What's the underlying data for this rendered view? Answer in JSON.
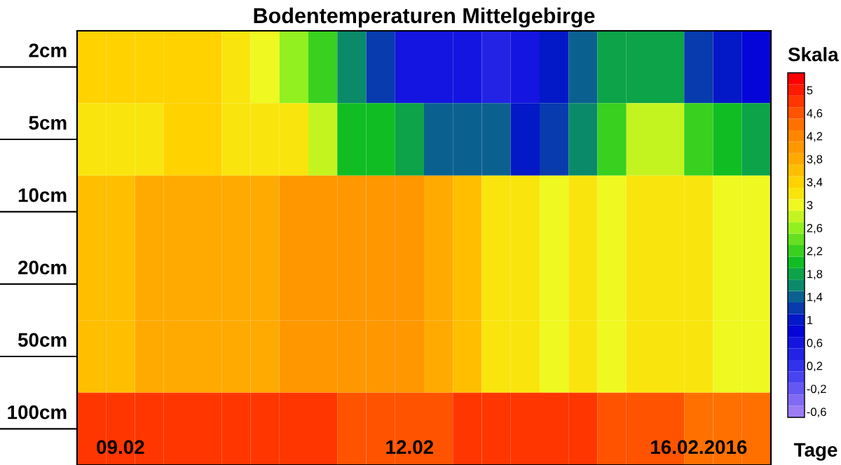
{
  "chart_data": {
    "type": "heatmap",
    "title": "Bodentemperaturen Mittelgebirge",
    "xlabel": "Tage",
    "clabel": "Skala",
    "categories": [
      null,
      "09.02",
      null,
      null,
      null,
      null,
      null,
      null,
      null,
      null,
      null,
      "12.02",
      null,
      null,
      null,
      null,
      null,
      null,
      null,
      null,
      null,
      "16.02.2016",
      null,
      null
    ],
    "y_categories": [
      "2cm",
      "5cm",
      "10cm",
      "20cm",
      "50cm",
      "100cm"
    ],
    "cells": [
      [
        3.4,
        3.4,
        3.4,
        3.4,
        3.4,
        3.2,
        3.0,
        2.6,
        2.2,
        1.6,
        1.2,
        0.6,
        0.6,
        0.6,
        0.4,
        0.6,
        1.0,
        1.4,
        1.8,
        1.8,
        1.8,
        1.2,
        1.0,
        0.8
      ],
      [
        3.2,
        3.2,
        3.2,
        3.4,
        3.4,
        3.2,
        3.2,
        3.2,
        2.8,
        2.0,
        2.0,
        1.8,
        1.4,
        1.4,
        1.4,
        1.0,
        1.2,
        1.6,
        2.2,
        2.8,
        2.8,
        2.2,
        2.0,
        1.8
      ],
      [
        3.6,
        3.6,
        3.8,
        3.8,
        3.8,
        3.8,
        3.8,
        4.0,
        4.0,
        4.0,
        4.0,
        4.0,
        3.8,
        3.6,
        3.2,
        3.2,
        3.0,
        3.2,
        3.0,
        3.2,
        3.2,
        3.2,
        3.0,
        3.0
      ],
      [
        3.6,
        3.6,
        3.8,
        3.8,
        3.8,
        3.8,
        3.8,
        4.0,
        4.0,
        4.0,
        4.0,
        4.0,
        3.8,
        3.6,
        3.2,
        3.2,
        3.0,
        3.2,
        3.0,
        3.2,
        3.2,
        3.2,
        3.0,
        3.0
      ],
      [
        3.6,
        3.6,
        3.8,
        3.8,
        3.8,
        3.8,
        3.8,
        4.0,
        4.0,
        4.0,
        4.0,
        4.0,
        3.8,
        3.6,
        3.2,
        3.2,
        3.0,
        3.2,
        3.0,
        3.2,
        3.2,
        3.2,
        3.0,
        3.0
      ],
      [
        4.8,
        4.8,
        4.8,
        4.8,
        4.8,
        4.8,
        4.8,
        4.8,
        4.8,
        4.6,
        4.6,
        4.6,
        4.6,
        4.8,
        4.8,
        4.8,
        4.8,
        4.8,
        4.6,
        4.6,
        4.6,
        4.4,
        4.4,
        4.4
      ]
    ],
    "clim": [
      -0.7,
      5.3
    ],
    "cticks": [
      {
        "value": -0.6,
        "label": "-0,6"
      },
      {
        "value": -0.2,
        "label": "-0,2"
      },
      {
        "value": 0.2,
        "label": "0,2"
      },
      {
        "value": 0.6,
        "label": "0,6"
      },
      {
        "value": 1,
        "label": "1"
      },
      {
        "value": 1.4,
        "label": "1,4"
      },
      {
        "value": 1.8,
        "label": "1,8"
      },
      {
        "value": 2.2,
        "label": "2,2"
      },
      {
        "value": 2.6,
        "label": "2,6"
      },
      {
        "value": 3,
        "label": "3"
      },
      {
        "value": 3.4,
        "label": "3,4"
      },
      {
        "value": 3.8,
        "label": "3,8"
      },
      {
        "value": 4.2,
        "label": "4,2"
      },
      {
        "value": 4.6,
        "label": "4,6"
      },
      {
        "value": 5,
        "label": "5"
      }
    ]
  }
}
